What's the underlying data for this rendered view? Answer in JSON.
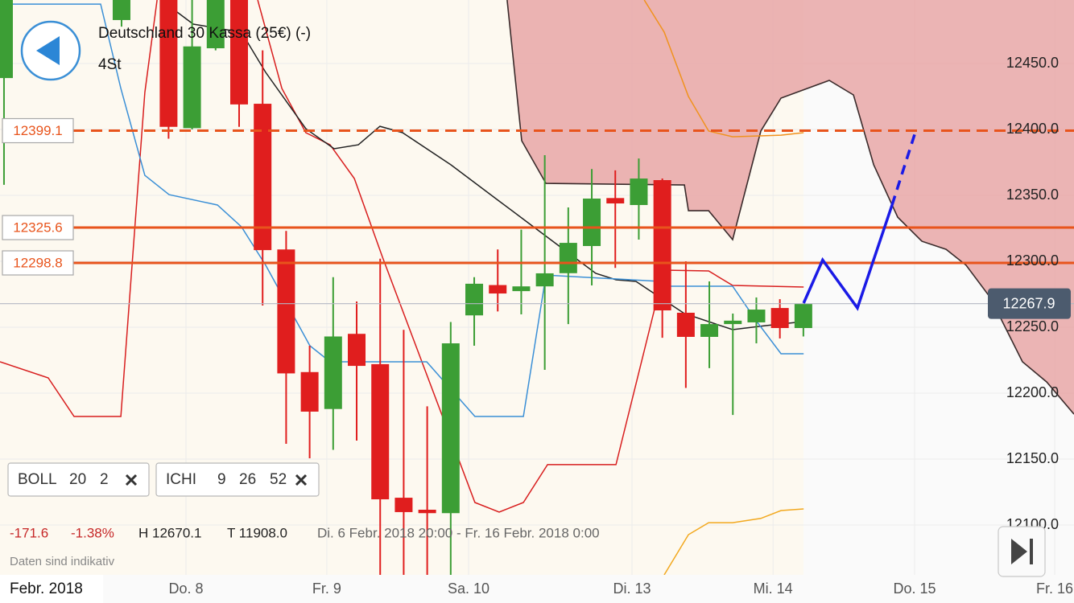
{
  "chart_data": {
    "type": "candlestick",
    "title": "Deutschland 30 Kassa (25€) (-)",
    "subtitle": "4St",
    "period_label": "Febr. 2018",
    "xlim": [
      -0.17,
      45.51
    ],
    "ylim": [
      12062.2,
      12498.2
    ],
    "yticks": [
      {
        "value": 12100,
        "label": "12100.0"
      },
      {
        "value": 12150,
        "label": "12150.0"
      },
      {
        "value": 12200,
        "label": "12200.0"
      },
      {
        "value": 12250,
        "label": "12250.0"
      },
      {
        "value": 12300,
        "label": "12300.0"
      },
      {
        "value": 12350,
        "label": "12350.0"
      },
      {
        "value": 12400,
        "label": "12400.0"
      },
      {
        "value": 12450,
        "label": "12450.0"
      }
    ],
    "xticks": [
      {
        "value": 7.74,
        "label": "Do. 8"
      },
      {
        "value": 13.73,
        "label": "Fr. 9"
      },
      {
        "value": 19.76,
        "label": "Sa. 10"
      },
      {
        "value": 26.71,
        "label": "Di. 13"
      },
      {
        "value": 32.71,
        "label": "Mi. 14"
      },
      {
        "value": 38.73,
        "label": "Do. 15"
      },
      {
        "value": 44.69,
        "label": "Fr. 16"
      }
    ],
    "grid": true,
    "candles": {
      "up_color": "#3c9e35",
      "down_color": "#e01e1e",
      "x": [
        0,
        5,
        7,
        8,
        9,
        10,
        11,
        12,
        13,
        14,
        15,
        16,
        17,
        18,
        19,
        20,
        21,
        22,
        23,
        24,
        25,
        26,
        27,
        28,
        29,
        30,
        31,
        32,
        33,
        34
      ],
      "open": [
        12439,
        12483,
        12510,
        12401,
        12461.6,
        12510,
        12419.5,
        12309,
        12216,
        12188,
        12245,
        12222,
        12120.7,
        12111.6,
        12109,
        12259,
        12282,
        12277.4,
        12281,
        12291,
        12311.6,
        12348,
        12342.7,
        12361.6,
        12261,
        12242.7,
        12252.4,
        12253.7,
        12264.6,
        12249.4
      ],
      "high": [
        12510,
        12520,
        12520,
        12520,
        12520,
        12520,
        12460,
        12323,
        12236,
        12288,
        12269.5,
        12302,
        12248,
        12190,
        12254,
        12288,
        12309,
        12324,
        12380.5,
        12340.9,
        12370,
        12369,
        12378,
        12362.8,
        12300,
        12284.8,
        12260.4,
        12272.6,
        12271.3,
        12268.3
      ],
      "low": [
        12358,
        12478,
        12393,
        12400,
        12460,
        12402,
        12266.5,
        12161.6,
        12150.6,
        12157,
        12164,
        12050,
        12050,
        12050,
        12050,
        12236,
        12262,
        12259.8,
        12217.7,
        12252.4,
        12281.7,
        12295,
        12316.5,
        12242,
        12204,
        12219,
        12183.5,
        12237.8,
        12241.5,
        12243
      ],
      "close": [
        12510,
        12510,
        12402,
        12463,
        12510,
        12419,
        12308.5,
        12215,
        12186,
        12243,
        12220.7,
        12119.5,
        12109.8,
        12109,
        12237.8,
        12283,
        12275.6,
        12281,
        12290.9,
        12314,
        12347.6,
        12343.9,
        12362.8,
        12262.8,
        12242.7,
        12252.4,
        12255,
        12263.4,
        12249.4,
        12267.9
      ]
    },
    "cloud": {
      "color": "#e8a7a7",
      "line_color": "#3a2b2b",
      "x": [
        21.4,
        22.02,
        23.05,
        28.94,
        29.11,
        29.97,
        30.99,
        32.19,
        33.05,
        35.1,
        36.13,
        36.99,
        38.01,
        39.04,
        40.07,
        40.92,
        41.95,
        43.32,
        44.35,
        45.51
      ],
      "values": [
        12498.2,
        12391.5,
        12359.1,
        12357.9,
        12338.4,
        12338.4,
        12316.5,
        12398.8,
        12423.8,
        12437.2,
        12426.2,
        12373.2,
        12333.5,
        12315.2,
        12309.1,
        12297,
        12272.6,
        12223.8,
        12208.5,
        12184.1
      ]
    },
    "lines": [
      {
        "color": "#d81e1e",
        "x": [
          -0.17,
          1.88,
          2.98,
          4.97,
          5.99,
          6.51
        ],
        "values": [
          12223.8,
          12211.6,
          12182.3,
          12182.3,
          12428.0,
          12498.2
        ]
      },
      {
        "color": "#d81e1e",
        "x": [
          10.79,
          11.82,
          12.84,
          13.87,
          14.9,
          16.1,
          20.03,
          21.06,
          22.09,
          23.12,
          26.03,
          28.08,
          29.97,
          30.99,
          34.01
        ],
        "values": [
          12498.2,
          12431.1,
          12397.6,
          12388.4,
          12362.8,
          12303.1,
          12117.1,
          12109.8,
          12117.1,
          12145.8,
          12145.8,
          12293.3,
          12292.7,
          12281.7,
          12280.5
        ]
      },
      {
        "color": "#222222",
        "x": [
          6.68,
          8.05,
          10.1,
          11.13,
          12.84,
          14.04,
          15.07,
          15.99,
          16.95,
          19.01,
          21.06,
          22.43,
          23.8,
          25.17,
          26.03,
          26.88,
          28.94,
          30.99,
          32.36,
          34.01
        ],
        "values": [
          12498.2,
          12479.9,
          12473.8,
          12443.3,
          12400.6,
          12385.4,
          12388.4,
          12402.4,
          12397.6,
          12373.2,
          12345.7,
          12327.4,
          12309.1,
          12290.9,
          12286,
          12284.8,
          12260.4,
          12248.2,
          12251.2,
          12254.3
        ]
      },
      {
        "color": "#3a8fd6",
        "x": [
          -0.17,
          4.11,
          4.97,
          5.99,
          7.02,
          9.08,
          10.1,
          11.13,
          13.01,
          13.87,
          17.98,
          20.03,
          22.09,
          23.05,
          27.91,
          28.25,
          30.99,
          32.02,
          33.05,
          34.01
        ],
        "values": [
          12495.1,
          12495.1,
          12431.1,
          12365.2,
          12350.6,
          12342.7,
          12326.2,
          12297,
          12236,
          12223.8,
          12223.8,
          12182.3,
          12182.3,
          12289.6,
          12284.8,
          12281.1,
          12281.1,
          12254.3,
          12229.9,
          12229.9
        ]
      },
      {
        "color": "#f0921e",
        "x": [
          27.23,
          28.08,
          29.11,
          29.97,
          30.99,
          33.05,
          34.01
        ],
        "values": [
          12498.2,
          12473.8,
          12425,
          12398.8,
          12394.5,
          12395.7,
          12397.6
        ]
      },
      {
        "color": "#f2a81e",
        "x": [
          28.08,
          29.11,
          29.97,
          30.99,
          32.19,
          33.05,
          34.01
        ],
        "values": [
          12062.2,
          12092.7,
          12101.8,
          12101.8,
          12105,
          12111,
          12112.2
        ]
      }
    ],
    "forecast": [
      {
        "color": "#1a1ae6",
        "dashed": false,
        "x": [
          34.01,
          34.82,
          36.3,
          37.77
        ],
        "values": [
          12268.3,
          12301,
          12264.6,
          12342.7
        ]
      },
      {
        "color": "#1a1ae6",
        "dashed": true,
        "x": [
          37.77,
          38.8
        ],
        "values": [
          12342.7,
          12400
        ]
      }
    ],
    "levels": [
      {
        "value": 12399.1,
        "color": "#e8541c",
        "dashed": true
      },
      {
        "value": 12325.6,
        "color": "#e8541c",
        "dashed": false
      },
      {
        "value": 12298.8,
        "color": "#e8541c",
        "dashed": false
      }
    ],
    "last_price": {
      "value": 12267.9,
      "color": "#4c5b6e"
    },
    "indicators": [
      {
        "name": "BOLL",
        "params": [
          20,
          2
        ]
      },
      {
        "name": "ICHI",
        "params": [
          9,
          26,
          52
        ]
      }
    ],
    "stats": {
      "change": "-171.6",
      "change_pct": "-1.38%",
      "high": "H 12670.1",
      "low": "T 11908.0",
      "range": "Di. 6 Febr. 2018 20:00 - Fr. 16 Febr. 2018 0:00"
    },
    "note": "Daten sind indikativ"
  }
}
